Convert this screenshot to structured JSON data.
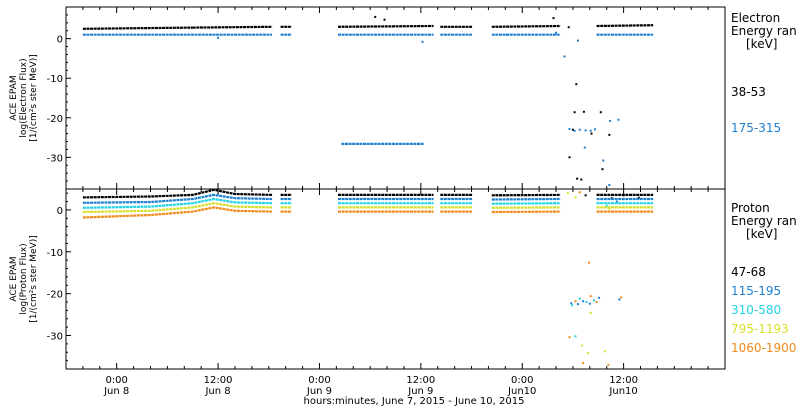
{
  "colors": {
    "black": "#000000",
    "blue": "#1f7fd0",
    "cyan": "#22d3e6",
    "yellow": "#d8df2a",
    "orange": "#f08a1a",
    "background": "#ffffff"
  },
  "x_axis": {
    "ticks": [
      {
        "time": "0:00",
        "date": "Jun 8",
        "hours": 0
      },
      {
        "time": "12:00",
        "date": "Jun 8",
        "hours": 12
      },
      {
        "time": "0:00",
        "date": "Jun 9",
        "hours": 24
      },
      {
        "time": "12:00",
        "date": "Jun 9",
        "hours": 36
      },
      {
        "time": "0:00",
        "date": "Jun10",
        "hours": 48
      },
      {
        "time": "12:00",
        "date": "Jun10",
        "hours": 60
      }
    ],
    "xlabel": "hours:minutes, June  7, 2015 - June 10, 2015"
  },
  "chart_data": [
    {
      "type": "scatter",
      "panel": "electron",
      "ylabel_lines": [
        "ACE EPAM",
        "log(Electron Flux)",
        "[1/(cm²s ster MeV)]"
      ],
      "legend_title": [
        "Electron",
        "Energy ran",
        "[keV]"
      ],
      "xlim": [
        -6,
        72
      ],
      "ylim": [
        -38,
        8
      ],
      "yticks": [
        0,
        -10,
        -20,
        -30
      ],
      "series": [
        {
          "name": "38-53",
          "color": "black",
          "segments": [
            {
              "x": [
                -4.0,
                9.0
              ],
              "y": [
                2.5,
                2.8
              ]
            },
            {
              "x": [
                9.0,
                18.4
              ],
              "y": [
                2.8,
                3.0
              ]
            },
            {
              "x": [
                19.4,
                20.7
              ],
              "y": [
                3.0,
                3.0
              ]
            },
            {
              "x": [
                26.2,
                37.5
              ],
              "y": [
                3.0,
                3.2
              ]
            },
            {
              "x": [
                38.3,
                42.1
              ],
              "y": [
                3.0,
                3.0
              ]
            },
            {
              "x": [
                44.4,
                52.5
              ],
              "y": [
                3.0,
                3.2
              ]
            },
            {
              "x": [
                56.8,
                63.5
              ],
              "y": [
                3.2,
                3.4
              ]
            }
          ],
          "scatter": [
            [
              30.6,
              5.5
            ],
            [
              31.7,
              4.8
            ],
            [
              51.7,
              5.2
            ],
            [
              53.5,
              2.9
            ],
            [
              54.4,
              -11.5
            ],
            [
              54.2,
              -18.6
            ],
            [
              55.3,
              -18.5
            ],
            [
              57.3,
              -18.6
            ],
            [
              54.0,
              -23.0
            ],
            [
              56.2,
              -24.0
            ],
            [
              58.3,
              -24.3
            ],
            [
              53.6,
              -30.0
            ],
            [
              54.5,
              -35.4
            ],
            [
              55.0,
              -35.6
            ],
            [
              57.5,
              -33.0
            ]
          ]
        },
        {
          "name": "175-315",
          "color": "blue",
          "segments": [
            {
              "x": [
                -4.0,
                18.4
              ],
              "y": [
                1.0,
                1.0
              ]
            },
            {
              "x": [
                19.4,
                20.7
              ],
              "y": [
                1.0,
                1.0
              ]
            },
            {
              "x": [
                26.2,
                37.5
              ],
              "y": [
                1.0,
                1.0
              ]
            },
            {
              "x": [
                38.3,
                42.1
              ],
              "y": [
                1.0,
                1.0
              ]
            },
            {
              "x": [
                44.4,
                52.5
              ],
              "y": [
                1.0,
                1.0
              ]
            },
            {
              "x": [
                56.8,
                63.5
              ],
              "y": [
                1.0,
                1.0
              ]
            },
            {
              "x": [
                26.6,
                36.4
              ],
              "y": [
                -26.6,
                -26.6
              ]
            }
          ],
          "scatter": [
            [
              52.0,
              1.5
            ],
            [
              54.6,
              -0.5
            ],
            [
              53.6,
              -22.8
            ],
            [
              54.2,
              -23.3
            ],
            [
              54.8,
              -23.0
            ],
            [
              55.5,
              -23.2
            ],
            [
              56.1,
              -23.3
            ],
            [
              56.6,
              -22.9
            ],
            [
              58.4,
              -20.8
            ],
            [
              59.4,
              -20.5
            ],
            [
              57.6,
              -30.8
            ],
            [
              58.3,
              -37.0
            ],
            [
              36.2,
              -0.8
            ],
            [
              46.2,
              1.0
            ],
            [
              12.0,
              0.2
            ],
            [
              53.0,
              -4.5
            ],
            [
              55.4,
              -27.5
            ]
          ]
        }
      ]
    },
    {
      "type": "scatter",
      "panel": "proton",
      "ylabel_lines": [
        "ACE EPAM",
        "log(Proton Flux)",
        "[1/(cm²s ster MeV)]"
      ],
      "legend_title": [
        "Proton",
        "Energy ran",
        "[keV]"
      ],
      "xlim": [
        -6,
        72
      ],
      "ylim": [
        -38,
        5
      ],
      "yticks": [
        0,
        -10,
        -20,
        -30
      ],
      "series": [
        {
          "name": "47-68",
          "color": "black",
          "segments": [
            {
              "x": [
                -4.0,
                4.0,
                9.0,
                11.5,
                14.0,
                18.4
              ],
              "y": [
                3.0,
                3.2,
                3.6,
                4.8,
                3.8,
                3.6
              ]
            },
            {
              "x": [
                19.4,
                20.7
              ],
              "y": [
                3.6,
                3.6
              ]
            },
            {
              "x": [
                26.2,
                37.5
              ],
              "y": [
                3.6,
                3.6
              ]
            },
            {
              "x": [
                38.3,
                42.1
              ],
              "y": [
                3.6,
                3.6
              ]
            },
            {
              "x": [
                44.4,
                52.5
              ],
              "y": [
                3.5,
                3.6
              ]
            },
            {
              "x": [
                56.8,
                63.5
              ],
              "y": [
                3.6,
                3.6
              ]
            }
          ],
          "scatter": [
            [
              55.5,
              3.5
            ],
            [
              58.6,
              2.8
            ],
            [
              60.0,
              3.5
            ],
            [
              61.8,
              2.9
            ]
          ]
        },
        {
          "name": "115-195",
          "color": "blue",
          "segments": [
            {
              "x": [
                -4.0,
                4.0,
                9.0,
                11.5,
                14.0,
                18.4
              ],
              "y": [
                1.7,
                1.9,
                2.6,
                3.6,
                2.8,
                2.6
              ]
            },
            {
              "x": [
                19.4,
                20.7
              ],
              "y": [
                2.6,
                2.6
              ]
            },
            {
              "x": [
                26.2,
                37.5
              ],
              "y": [
                2.6,
                2.6
              ]
            },
            {
              "x": [
                38.3,
                42.1
              ],
              "y": [
                2.6,
                2.6
              ]
            },
            {
              "x": [
                44.4,
                52.5
              ],
              "y": [
                2.5,
                2.6
              ]
            },
            {
              "x": [
                56.8,
                63.5
              ],
              "y": [
                2.6,
                2.6
              ]
            }
          ],
          "scatter": [
            [
              53.8,
              -22.3
            ],
            [
              54.6,
              -22.5
            ],
            [
              55.2,
              -21.8
            ],
            [
              56.0,
              -22.4
            ],
            [
              57.1,
              -21.0
            ],
            [
              59.5,
              -21.4
            ],
            [
              59.2,
              2.0
            ]
          ]
        },
        {
          "name": "310-580",
          "color": "cyan",
          "segments": [
            {
              "x": [
                -4.0,
                4.0,
                9.0,
                11.5,
                14.0,
                18.4
              ],
              "y": [
                0.5,
                0.8,
                1.6,
                2.6,
                1.8,
                1.6
              ]
            },
            {
              "x": [
                19.4,
                20.7
              ],
              "y": [
                1.6,
                1.6
              ]
            },
            {
              "x": [
                26.2,
                37.5
              ],
              "y": [
                1.6,
                1.6
              ]
            },
            {
              "x": [
                38.3,
                42.1
              ],
              "y": [
                1.6,
                1.6
              ]
            },
            {
              "x": [
                44.4,
                52.5
              ],
              "y": [
                1.5,
                1.6
              ]
            },
            {
              "x": [
                56.8,
                63.5
              ],
              "y": [
                1.6,
                1.6
              ]
            }
          ],
          "scatter": [
            [
              53.9,
              -22.8
            ],
            [
              54.8,
              -21.2
            ],
            [
              55.6,
              -22.0
            ],
            [
              56.5,
              -21.6
            ],
            [
              54.3,
              -30.2
            ],
            [
              58.0,
              1.0
            ]
          ]
        },
        {
          "name": "795-1193",
          "color": "yellow",
          "segments": [
            {
              "x": [
                -4.0,
                4.0,
                9.0,
                11.5,
                14.0,
                18.4
              ],
              "y": [
                -0.5,
                -0.2,
                0.6,
                1.6,
                0.8,
                0.6
              ]
            },
            {
              "x": [
                19.4,
                20.7
              ],
              "y": [
                0.6,
                0.6
              ]
            },
            {
              "x": [
                26.2,
                37.5
              ],
              "y": [
                0.6,
                0.6
              ]
            },
            {
              "x": [
                38.3,
                42.1
              ],
              "y": [
                0.6,
                0.6
              ]
            },
            {
              "x": [
                44.4,
                52.5
              ],
              "y": [
                0.5,
                0.6
              ]
            },
            {
              "x": [
                56.8,
                63.5
              ],
              "y": [
                0.6,
                0.6
              ]
            }
          ],
          "scatter": [
            [
              53.4,
              4.0
            ],
            [
              54.3,
              3.0
            ],
            [
              56.1,
              -24.6
            ],
            [
              55.1,
              -32.4
            ],
            [
              55.8,
              -34.2
            ],
            [
              57.8,
              -33.8
            ],
            [
              58.3,
              0.3
            ]
          ]
        },
        {
          "name": "1060-1900",
          "color": "orange",
          "segments": [
            {
              "x": [
                -4.0,
                -1.0,
                4.0,
                9.0,
                11.5,
                14.0,
                18.4
              ],
              "y": [
                -1.8,
                -1.6,
                -1.2,
                -0.4,
                0.6,
                -0.2,
                -0.4
              ]
            },
            {
              "x": [
                19.4,
                20.7
              ],
              "y": [
                -0.4,
                -0.4
              ]
            },
            {
              "x": [
                26.2,
                37.5
              ],
              "y": [
                -0.4,
                -0.4
              ]
            },
            {
              "x": [
                38.3,
                42.1
              ],
              "y": [
                -0.4,
                -0.4
              ]
            },
            {
              "x": [
                44.4,
                52.5
              ],
              "y": [
                -0.5,
                -0.4
              ]
            },
            {
              "x": [
                56.8,
                63.5
              ],
              "y": [
                -0.4,
                -0.4
              ]
            }
          ],
          "scatter": [
            [
              55.9,
              -12.6
            ],
            [
              54.3,
              -21.8
            ],
            [
              56.1,
              -20.6
            ],
            [
              56.8,
              -22.0
            ],
            [
              59.7,
              -20.9
            ],
            [
              53.6,
              -30.4
            ],
            [
              55.2,
              -36.6
            ],
            [
              58.2,
              -37.0
            ],
            [
              54.8,
              4.2
            ]
          ]
        }
      ]
    }
  ]
}
